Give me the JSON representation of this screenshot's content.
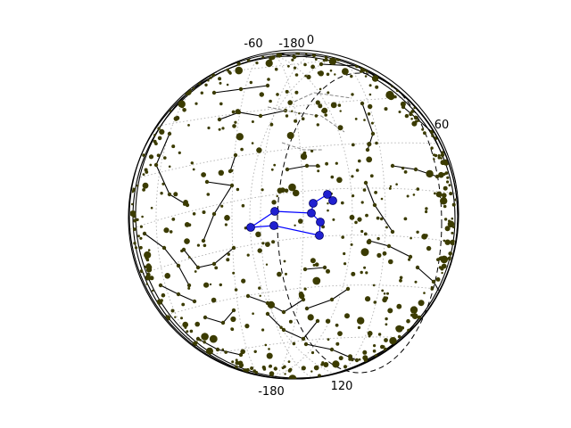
{
  "tick_labels": {
    "top_left": "-60",
    "top_mid": "-180",
    "top_right": "0",
    "right": "60",
    "bottom_left": "-180",
    "bottom_right": "120"
  },
  "colors": {
    "background": "#ffffff",
    "star_fill": "#3b3b00",
    "constellation_line": "#000000",
    "highlight_line": "#0000ff",
    "highlight_star": "#2020d0",
    "graticule": "#b0b0b0",
    "faded_line": "#888888"
  },
  "highlighted_constellation": "asterism shown in blue",
  "graticule": true
}
